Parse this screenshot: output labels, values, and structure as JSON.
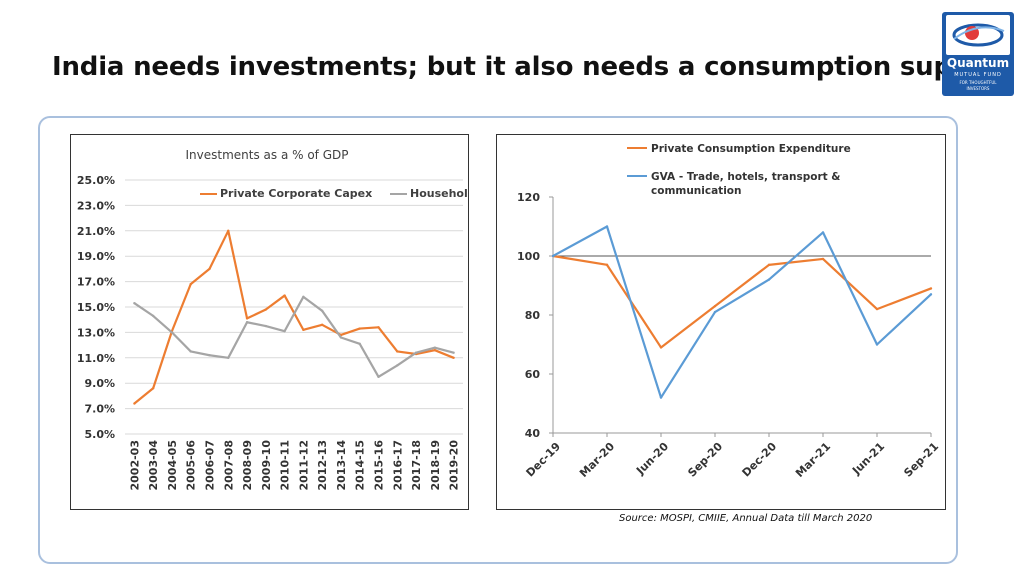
{
  "slide": {
    "title": "India needs investments; but it also needs a consumption support",
    "source": "Source: MOSPI, CMIIE, Annual Data till March 2020"
  },
  "logo": {
    "name": "Quantum",
    "sub1": "MUTUAL FUND",
    "sub2": "FOR THOUGHTFUL",
    "sub3": "INVESTORS"
  },
  "chart_data": [
    {
      "type": "line",
      "title": "Investments as a % of GDP",
      "categories": [
        "2002-03",
        "2003-04",
        "2004-05",
        "2005-06",
        "2006-07",
        "2007-08",
        "2008-09",
        "2009-10",
        "2010-11",
        "2011-12",
        "2012-13",
        "2013-14",
        "2014-15",
        "2015-16",
        "2016-17",
        "2017-18",
        "2018-19",
        "2019-20"
      ],
      "series": [
        {
          "name": "Private Corporate Capex",
          "color": "#ed7d31",
          "values": [
            7.4,
            8.6,
            13.1,
            16.8,
            18.0,
            21.0,
            14.1,
            14.8,
            15.9,
            13.2,
            13.6,
            12.8,
            13.3,
            13.4,
            11.5,
            11.3,
            11.6,
            11.0
          ]
        },
        {
          "name": "Household Capex",
          "color": "#a5a5a5",
          "values": [
            15.3,
            14.3,
            13.0,
            11.5,
            11.2,
            11.0,
            13.8,
            13.5,
            13.1,
            15.8,
            14.7,
            12.6,
            12.1,
            9.5,
            10.4,
            11.4,
            11.8,
            11.4
          ]
        }
      ],
      "ylim": [
        5.0,
        25.0
      ],
      "yticks": [
        "5.0%",
        "7.0%",
        "9.0%",
        "11.0%",
        "13.0%",
        "15.0%",
        "17.0%",
        "19.0%",
        "21.0%",
        "23.0%",
        "25.0%"
      ],
      "grid": true,
      "legend": "top"
    },
    {
      "type": "line",
      "categories": [
        "Dec-19",
        "Mar-20",
        "Jun-20",
        "Sep-20",
        "Dec-20",
        "Mar-21",
        "Jun-21",
        "Sep-21"
      ],
      "series": [
        {
          "name": "Private Consumption Expenditure",
          "color": "#ed7d31",
          "values": [
            100,
            97,
            69,
            83,
            97,
            99,
            82,
            89
          ]
        },
        {
          "name": "GVA - Trade, hotels, transport & communication",
          "color": "#5b9bd5",
          "values": [
            100,
            110,
            52,
            81,
            92,
            108,
            70,
            87
          ]
        }
      ],
      "reference_line": 100,
      "ylim": [
        40,
        120
      ],
      "yticks": [
        "40",
        "60",
        "80",
        "100",
        "120"
      ],
      "grid": false,
      "legend": "top"
    }
  ]
}
